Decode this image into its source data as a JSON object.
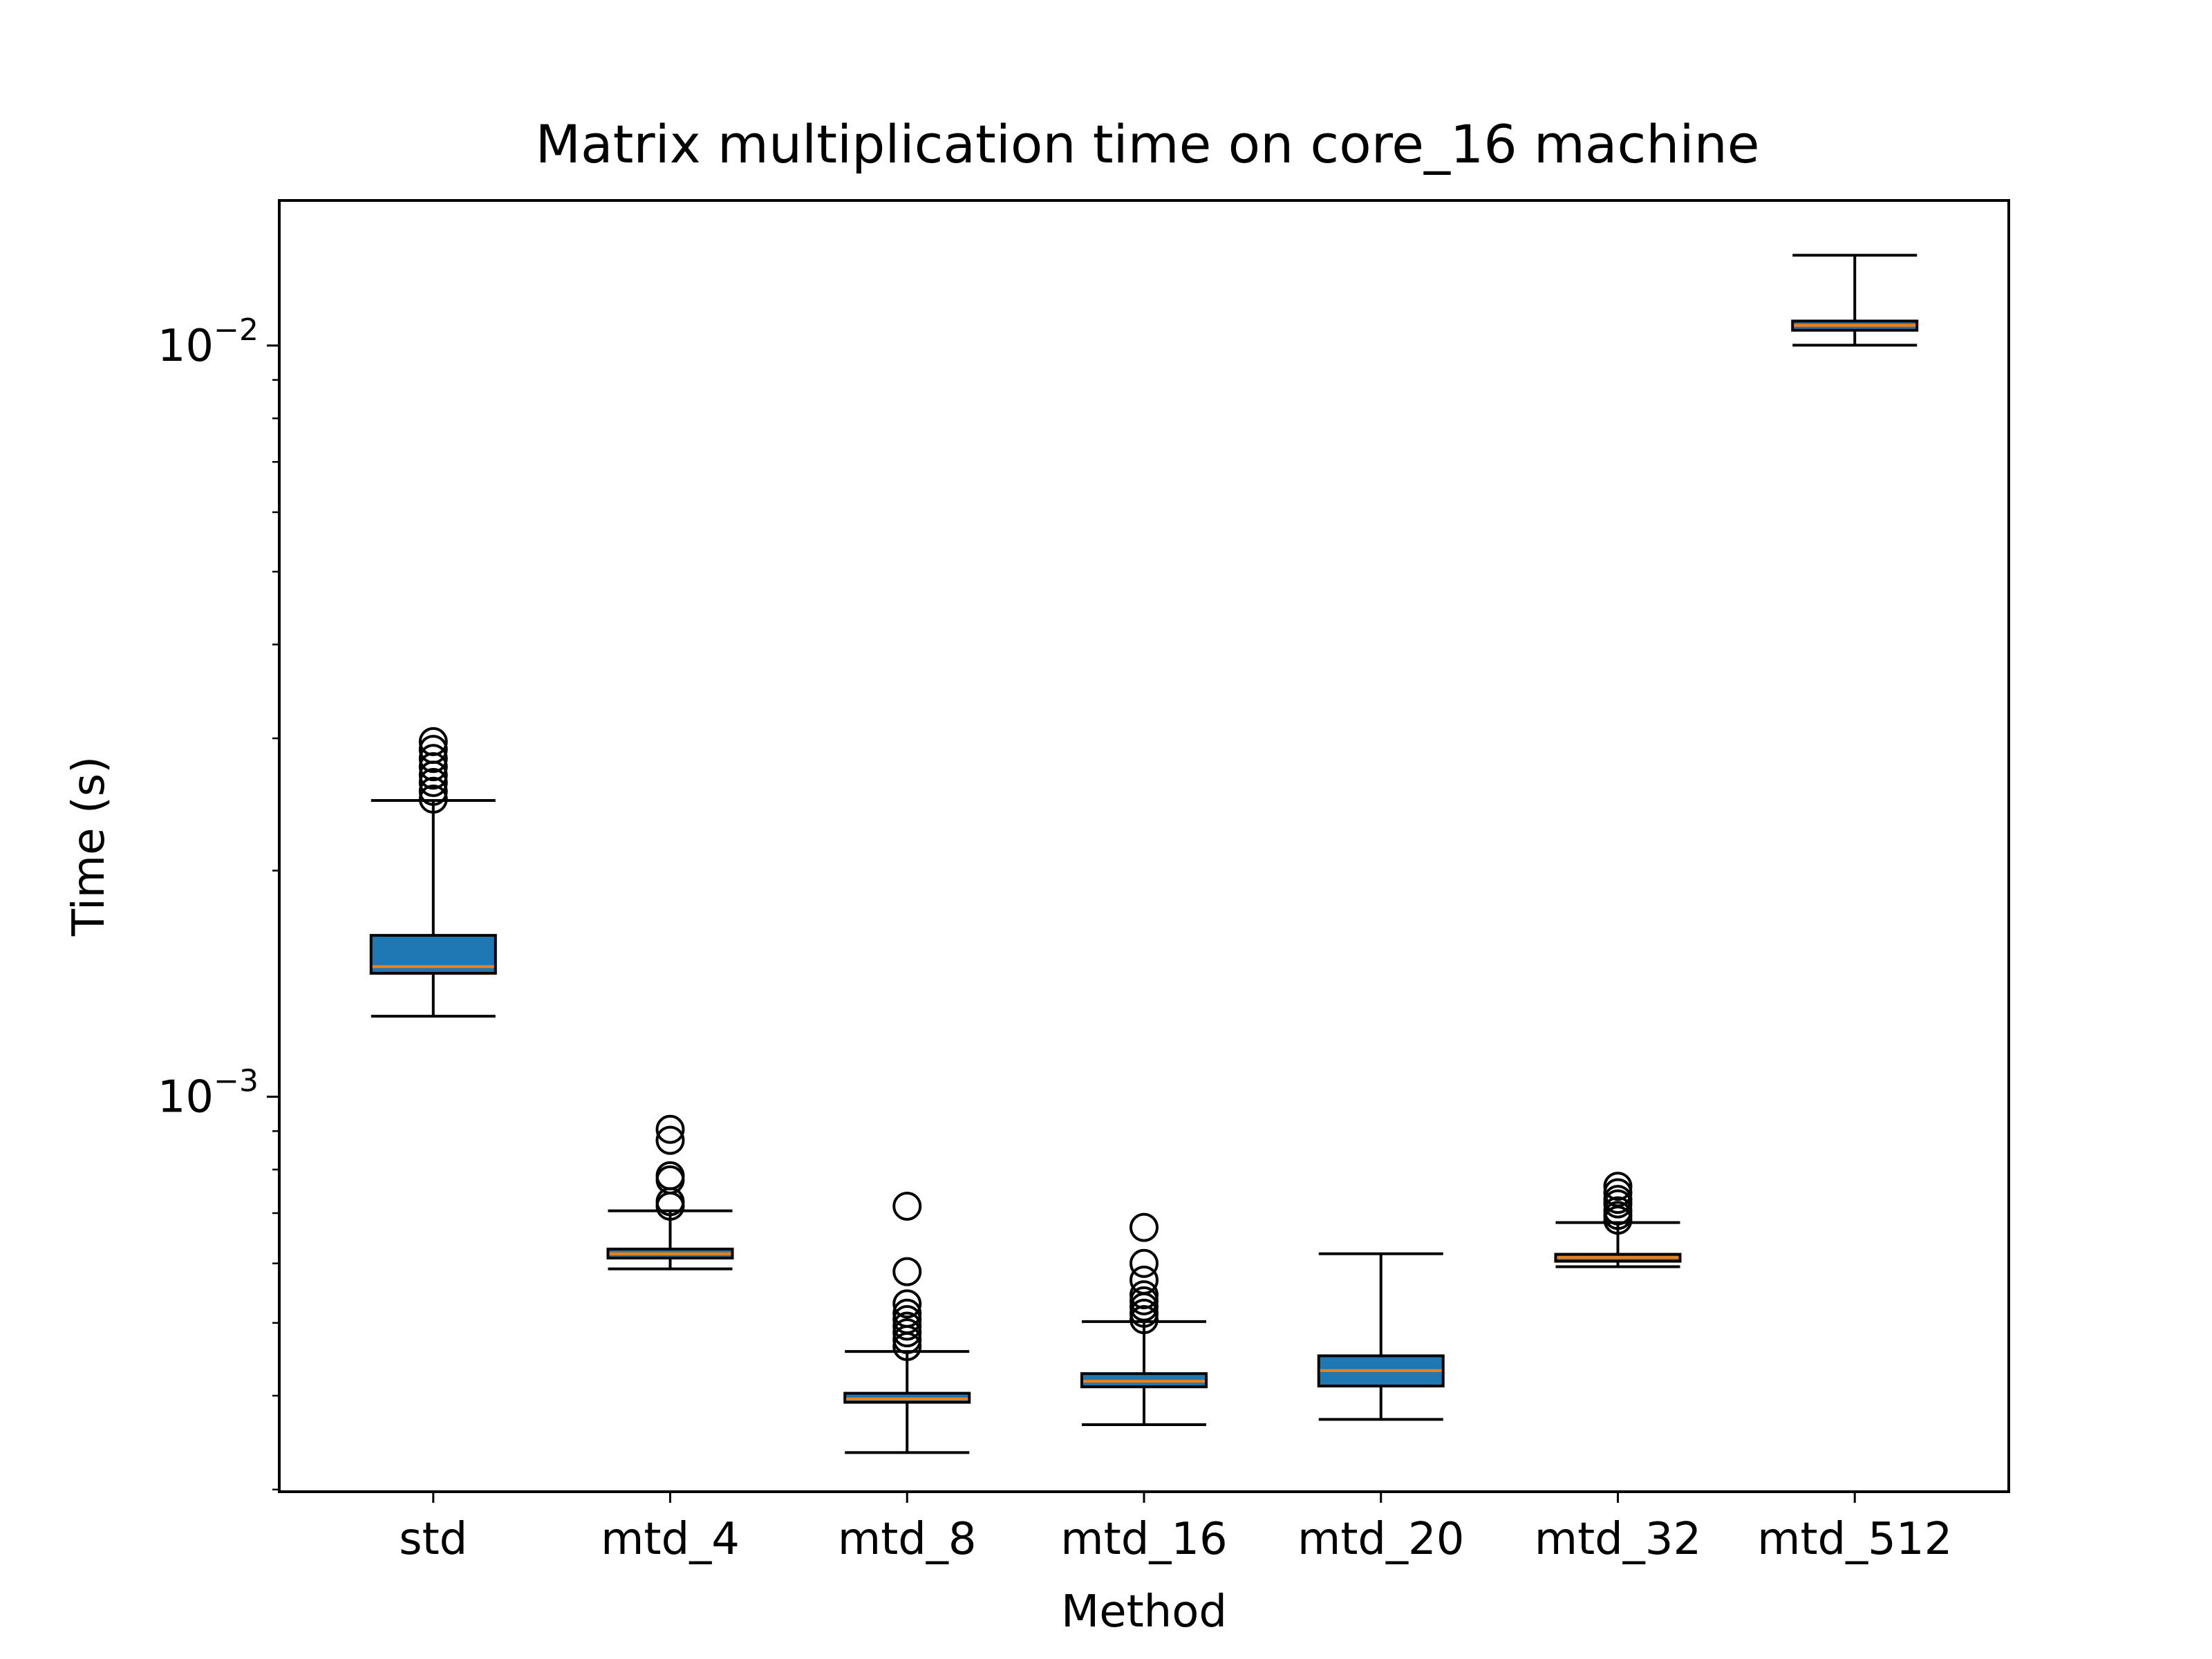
{
  "chart_data": {
    "type": "box",
    "title": "Matrix multiplication time on core_16 machine",
    "xlabel": "Method",
    "ylabel": "Time (s)",
    "yscale": "log",
    "ylim": [
      0.000298,
      0.0156
    ],
    "ytick_labels": [
      {
        "base": "10",
        "exp": "−2",
        "value": 0.01
      },
      {
        "base": "10",
        "exp": "−3",
        "value": 0.001
      }
    ],
    "minor_ticks": [
      0.0003,
      0.0004,
      0.0005,
      0.0006,
      0.0007,
      0.0008,
      0.0009,
      0.002,
      0.003,
      0.004,
      0.005,
      0.006,
      0.007,
      0.008,
      0.009
    ],
    "grid": false,
    "colors": {
      "box_fill": "#1f77b4",
      "median": "#ff7f0e",
      "line": "#000000"
    },
    "categories": [
      "std",
      "mtd_4",
      "mtd_8",
      "mtd_16",
      "mtd_20",
      "mtd_32",
      "mtd_512"
    ],
    "boxes": [
      {
        "label": "std",
        "whislo": 0.00128,
        "q1": 0.00146,
        "median": 0.00149,
        "q3": 0.00164,
        "whishi": 0.00248,
        "fliers": [
          0.00249,
          0.00255,
          0.00262,
          0.00268,
          0.00275,
          0.00282,
          0.0029,
          0.00297
        ]
      },
      {
        "label": "mtd_4",
        "whislo": 0.00059,
        "q1": 0.00061,
        "median": 0.000618,
        "q3": 0.000627,
        "whishi": 0.000705,
        "fliers": [
          0.000715,
          0.000725,
          0.000775,
          0.000785,
          0.000875,
          0.000905
        ]
      },
      {
        "label": "mtd_8",
        "whislo": 0.000336,
        "q1": 0.000392,
        "median": 0.000396,
        "q3": 0.000403,
        "whishi": 0.000458,
        "fliers": [
          0.000465,
          0.000475,
          0.000485,
          0.000495,
          0.000505,
          0.000515,
          0.00053,
          0.000585,
          0.000715
        ]
      },
      {
        "label": "mtd_16",
        "whislo": 0.000366,
        "q1": 0.000411,
        "median": 0.000418,
        "q3": 0.000428,
        "whishi": 0.000502,
        "fliers": [
          0.000505,
          0.000515,
          0.000525,
          0.000535,
          0.000545,
          0.00057,
          0.0006,
          0.00067
        ]
      },
      {
        "label": "mtd_20",
        "whislo": 0.000372,
        "q1": 0.000412,
        "median": 0.000432,
        "q3": 0.000452,
        "whishi": 0.000618,
        "fliers": []
      },
      {
        "label": "mtd_32",
        "whislo": 0.000594,
        "q1": 0.000604,
        "median": 0.000611,
        "q3": 0.000617,
        "whishi": 0.00068,
        "fliers": [
          0.000685,
          0.000695,
          0.000705,
          0.00072,
          0.00073,
          0.000745,
          0.00076
        ]
      },
      {
        "label": "mtd_512",
        "whislo": 0.01001,
        "q1": 0.01048,
        "median": 0.01064,
        "q3": 0.01078,
        "whishi": 0.01319,
        "fliers": []
      }
    ]
  }
}
